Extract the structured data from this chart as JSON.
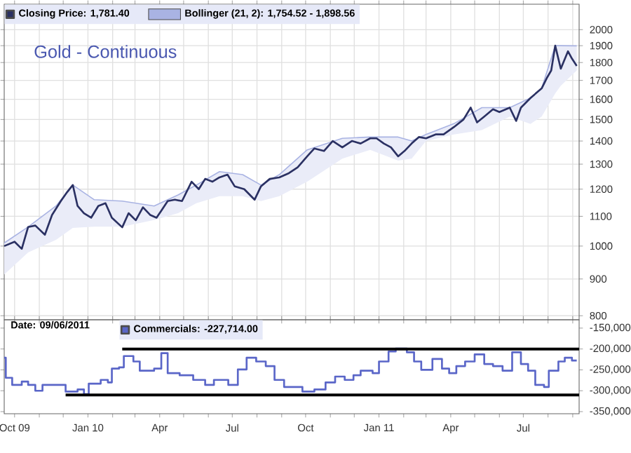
{
  "chart_data": [
    {
      "type": "line",
      "title": "Gold - Continuous",
      "legend": "top left",
      "grid": true,
      "log": "y",
      "marker": "none",
      "line_style": "solid",
      "tick_labels": "y",
      "xlim": [
        "2009-09-18",
        "2011-09-09"
      ],
      "ylim": [
        790,
        2170
      ],
      "yticks": [
        800,
        900,
        1000,
        1100,
        1200,
        1300,
        1400,
        1500,
        1600,
        1700,
        1800,
        1900,
        2000
      ],
      "xticks": [
        {
          "value": "2009-10-01",
          "label": null
        },
        {
          "value": "2009-11-01",
          "label": null
        },
        {
          "value": "2009-12-01",
          "label": null
        },
        {
          "value": "2010-01-01",
          "label": null
        },
        {
          "value": "2010-02-01",
          "label": null
        },
        {
          "value": "2010-03-01",
          "label": null
        },
        {
          "value": "2010-04-01",
          "label": null
        },
        {
          "value": "2010-05-01",
          "label": null
        },
        {
          "value": "2010-06-01",
          "label": null
        },
        {
          "value": "2010-07-01",
          "label": null
        },
        {
          "value": "2010-08-01",
          "label": null
        },
        {
          "value": "2010-09-01",
          "label": null
        },
        {
          "value": "2010-10-01",
          "label": null
        },
        {
          "value": "2010-11-01",
          "label": null
        },
        {
          "value": "2010-12-01",
          "label": null
        },
        {
          "value": "2011-01-01",
          "label": null
        },
        {
          "value": "2011-02-01",
          "label": null
        },
        {
          "value": "2011-03-01",
          "label": null
        },
        {
          "value": "2011-04-01",
          "label": null
        },
        {
          "value": "2011-05-01",
          "label": null
        },
        {
          "value": "2011-06-01",
          "label": null
        },
        {
          "value": "2011-07-01",
          "label": null
        },
        {
          "value": "2011-08-01",
          "label": null
        },
        {
          "value": "2011-09-01",
          "label": null
        }
      ],
      "series": [
        {
          "name": "Closing Price: 1,781.40",
          "color": "#2b3163",
          "x": [
            "2009-09-18",
            "2009-10-01",
            "2009-10-10",
            "2009-10-18",
            "2009-10-27",
            "2009-11-08",
            "2009-11-17",
            "2009-11-28",
            "2009-12-06",
            "2009-12-13",
            "2009-12-19",
            "2009-12-27",
            "2010-01-05",
            "2010-01-14",
            "2010-01-23",
            "2010-01-31",
            "2010-02-13",
            "2010-02-21",
            "2010-03-02",
            "2010-03-11",
            "2010-03-20",
            "2010-03-28",
            "2010-04-03",
            "2010-04-11",
            "2010-04-20",
            "2010-04-29",
            "2010-05-11",
            "2010-05-20",
            "2010-05-28",
            "2010-06-06",
            "2010-06-15",
            "2010-06-25",
            "2010-07-04",
            "2010-07-16",
            "2010-07-29",
            "2010-08-06",
            "2010-08-17",
            "2010-08-29",
            "2010-09-10",
            "2010-09-21",
            "2010-10-03",
            "2010-10-12",
            "2010-10-24",
            "2010-11-04",
            "2010-11-16",
            "2010-11-28",
            "2010-12-09",
            "2010-12-21",
            "2010-12-29",
            "2011-01-07",
            "2011-01-16",
            "2011-01-25",
            "2011-02-02",
            "2011-02-11",
            "2011-02-20",
            "2011-03-01",
            "2011-03-13",
            "2011-03-23",
            "2011-04-05",
            "2011-04-17",
            "2011-04-26",
            "2011-05-04",
            "2011-05-13",
            "2011-05-24",
            "2011-06-01",
            "2011-06-14",
            "2011-06-22",
            "2011-06-28",
            "2011-07-10",
            "2011-07-24",
            "2011-07-31",
            "2011-08-05",
            "2011-08-10",
            "2011-08-17",
            "2011-08-26",
            "2011-08-31",
            "2011-09-06"
          ],
          "values": [
            1000,
            1014,
            991,
            1063,
            1068,
            1037,
            1105,
            1155,
            1189,
            1216,
            1137,
            1111,
            1095,
            1137,
            1147,
            1095,
            1062,
            1111,
            1086,
            1132,
            1105,
            1095,
            1120,
            1155,
            1160,
            1155,
            1229,
            1200,
            1240,
            1229,
            1246,
            1257,
            1211,
            1200,
            1160,
            1211,
            1240,
            1246,
            1263,
            1287,
            1333,
            1367,
            1356,
            1400,
            1372,
            1400,
            1389,
            1412,
            1412,
            1389,
            1372,
            1333,
            1356,
            1389,
            1418,
            1412,
            1430,
            1430,
            1464,
            1500,
            1558,
            1486,
            1514,
            1550,
            1536,
            1558,
            1493,
            1558,
            1607,
            1657,
            1717,
            1755,
            1900,
            1765,
            1866,
            1823,
            1781
          ]
        },
        {
          "name": "Bollinger (21, 2): 1,754.52 - 1,898.56",
          "type": "line",
          "color": "#a9b3e3",
          "x": [
            "2009-09-18",
            "2009-10-18",
            "2009-11-22",
            "2009-12-13",
            "2010-01-09",
            "2010-02-13",
            "2010-03-25",
            "2010-04-24",
            "2010-05-17",
            "2010-06-15",
            "2010-07-14",
            "2010-08-06",
            "2010-08-29",
            "2010-10-03",
            "2010-11-16",
            "2010-12-21",
            "2011-01-25",
            "2011-02-11",
            "2011-03-01",
            "2011-04-05",
            "2011-05-10",
            "2011-06-14",
            "2011-07-10",
            "2011-07-24",
            "2011-08-10",
            "2011-08-17",
            "2011-09-06"
          ],
          "values": [
            1010,
            1063,
            1137,
            1216,
            1160,
            1155,
            1137,
            1178,
            1216,
            1269,
            1257,
            1216,
            1257,
            1361,
            1412,
            1418,
            1418,
            1400,
            1430,
            1480,
            1558,
            1558,
            1607,
            1657,
            1900,
            1900,
            1899
          ],
          "upper": [
            1010,
            1063,
            1137,
            1216,
            1160,
            1155,
            1137,
            1178,
            1216,
            1269,
            1257,
            1216,
            1257,
            1361,
            1412,
            1418,
            1418,
            1400,
            1430,
            1480,
            1558,
            1558,
            1607,
            1657,
            1900,
            1900,
            1899
          ],
          "lower": [
            913,
            980,
            1020,
            1060,
            1064,
            1064,
            1087,
            1111,
            1147,
            1173,
            1173,
            1155,
            1173,
            1229,
            1323,
            1361,
            1315,
            1323,
            1400,
            1430,
            1450,
            1514,
            1479,
            1514,
            1630,
            1671,
            1755
          ]
        }
      ]
    },
    {
      "type": "step",
      "legend": "top left",
      "marker": "none",
      "line_style": "solid",
      "annotations": [
        "Date: 09/06/2011"
      ],
      "xlim": [
        "2009-09-18",
        "2011-09-09"
      ],
      "ylim": [
        -355000,
        -130000
      ],
      "yticks": [
        {
          "value": -150000,
          "label": "-150,000"
        },
        {
          "value": -200000,
          "label": "-200,000"
        },
        {
          "value": -250000,
          "label": "-250,000"
        },
        {
          "value": -300000,
          "label": "-300,000"
        },
        {
          "value": -350000,
          "label": "-350,000"
        }
      ],
      "xticks": [
        {
          "value": "2009-10-01",
          "label": "Oct 09"
        },
        {
          "value": "2009-11-01",
          "label": null
        },
        {
          "value": "2009-12-01",
          "label": null
        },
        {
          "value": "2010-01-01",
          "label": "Jan 10"
        },
        {
          "value": "2010-02-01",
          "label": null
        },
        {
          "value": "2010-03-01",
          "label": null
        },
        {
          "value": "2010-04-01",
          "label": "Apr"
        },
        {
          "value": "2010-05-01",
          "label": null
        },
        {
          "value": "2010-06-01",
          "label": null
        },
        {
          "value": "2010-07-01",
          "label": "Jul"
        },
        {
          "value": "2010-08-01",
          "label": null
        },
        {
          "value": "2010-09-01",
          "label": null
        },
        {
          "value": "2010-10-01",
          "label": "Oct"
        },
        {
          "value": "2010-11-01",
          "label": null
        },
        {
          "value": "2010-12-01",
          "label": null
        },
        {
          "value": "2011-01-01",
          "label": "Jan 11"
        },
        {
          "value": "2011-02-01",
          "label": null
        },
        {
          "value": "2011-03-01",
          "label": null
        },
        {
          "value": "2011-04-01",
          "label": "Apr"
        },
        {
          "value": "2011-05-01",
          "label": null
        },
        {
          "value": "2011-06-01",
          "label": null
        },
        {
          "value": "2011-07-01",
          "label": "Jul"
        },
        {
          "value": "2011-08-01",
          "label": null
        },
        {
          "value": "2011-09-01",
          "label": null
        }
      ],
      "series": [
        {
          "name": "Commercials: -227,714.00",
          "color": "#5a66c8",
          "x": [
            "2009-09-18",
            "2009-09-20",
            "2009-09-28",
            "2009-10-10",
            "2009-10-18",
            "2009-10-27",
            "2009-11-05",
            "2009-12-04",
            "2009-12-19",
            "2009-12-27",
            "2010-01-02",
            "2010-01-17",
            "2010-01-26",
            "2010-01-31",
            "2010-02-09",
            "2010-02-15",
            "2010-02-27",
            "2010-03-07",
            "2010-03-25",
            "2010-04-03",
            "2010-04-11",
            "2010-04-26",
            "2010-05-13",
            "2010-05-28",
            "2010-06-08",
            "2010-06-26",
            "2010-07-08",
            "2010-07-19",
            "2010-07-31",
            "2010-08-12",
            "2010-08-23",
            "2010-09-04",
            "2010-09-27",
            "2010-10-12",
            "2010-10-26",
            "2010-11-07",
            "2010-11-19",
            "2010-11-30",
            "2010-12-09",
            "2010-12-24",
            "2011-01-01",
            "2011-01-13",
            "2011-01-22",
            "2011-02-05",
            "2011-02-14",
            "2011-02-23",
            "2011-03-09",
            "2011-03-21",
            "2011-03-30",
            "2011-04-08",
            "2011-04-19",
            "2011-05-01",
            "2011-05-13",
            "2011-05-24",
            "2011-06-05",
            "2011-06-17",
            "2011-06-28",
            "2011-07-07",
            "2011-07-16",
            "2011-07-27",
            "2011-08-02",
            "2011-08-14",
            "2011-08-22",
            "2011-08-31",
            "2011-09-06"
          ],
          "values": [
            -221000,
            -269000,
            -286000,
            -278000,
            -286000,
            -300000,
            -286000,
            -302000,
            -297000,
            -308000,
            -283000,
            -274000,
            -280000,
            -247000,
            -244000,
            -217000,
            -230000,
            -252000,
            -247000,
            -210000,
            -258000,
            -263000,
            -274000,
            -286000,
            -274000,
            -286000,
            -249000,
            -221000,
            -230000,
            -241000,
            -274000,
            -291000,
            -302000,
            -297000,
            -280000,
            -266000,
            -274000,
            -263000,
            -252000,
            -258000,
            -230000,
            -206000,
            -199000,
            -208000,
            -230000,
            -250000,
            -224000,
            -247000,
            -258000,
            -241000,
            -230000,
            -213000,
            -236000,
            -241000,
            -252000,
            -208000,
            -236000,
            -252000,
            -286000,
            -291000,
            -252000,
            -230000,
            -221000,
            -227714,
            -227714
          ]
        },
        {
          "type": "line",
          "color": "#000000",
          "x": [
            "2010-02-13",
            "2011-09-09"
          ],
          "values": [
            -200000,
            -200000
          ]
        },
        {
          "type": "line",
          "color": "#000000",
          "x": [
            "2009-12-04",
            "2011-09-09"
          ],
          "values": [
            -310000,
            -310000
          ]
        }
      ]
    }
  ]
}
